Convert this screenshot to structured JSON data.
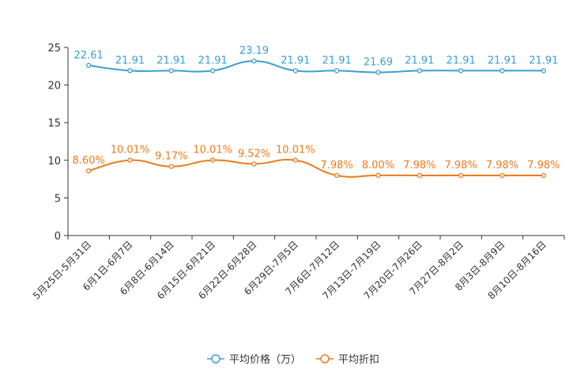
{
  "chart_data": {
    "type": "line",
    "title": "",
    "xlabel": "",
    "ylabel": "",
    "ylim": [
      0,
      25
    ],
    "yticks": [
      0,
      5,
      10,
      15,
      20,
      25
    ],
    "grid": false,
    "legend_position": "bottom-center",
    "categories": [
      "5月25日-5月31日",
      "6月1日-6月7日",
      "6月8日-6月14日",
      "6月15日-6月21日",
      "6月22日-6月28日",
      "6月29日-7月5日",
      "7月6日-7月12日",
      "7月13日-7月19日",
      "7月20日-7月26日",
      "7月27日-8月2日",
      "8月3日-8月9日",
      "8月10日-8月16日"
    ],
    "series": [
      {
        "name": "平均价格（万）",
        "color": "#3a9fd4",
        "values": [
          22.61,
          21.91,
          21.91,
          21.91,
          23.19,
          21.91,
          21.91,
          21.69,
          21.91,
          21.91,
          21.91,
          21.91
        ],
        "labels": [
          "22.61",
          "21.91",
          "21.91",
          "21.91",
          "23.19",
          "21.91",
          "21.91",
          "21.69",
          "21.91",
          "21.91",
          "21.91",
          "21.91"
        ]
      },
      {
        "name": "平均折扣",
        "color": "#f07a1e",
        "values": [
          8.6,
          10.01,
          9.17,
          10.01,
          9.52,
          10.01,
          7.98,
          8.0,
          7.98,
          7.98,
          7.98,
          7.98
        ],
        "labels": [
          "8.60%",
          "10.01%",
          "9.17%",
          "10.01%",
          "9.52%",
          "10.01%",
          "7.98%",
          "8.00%",
          "7.98%",
          "7.98%",
          "7.98%",
          "7.98%"
        ]
      }
    ]
  }
}
